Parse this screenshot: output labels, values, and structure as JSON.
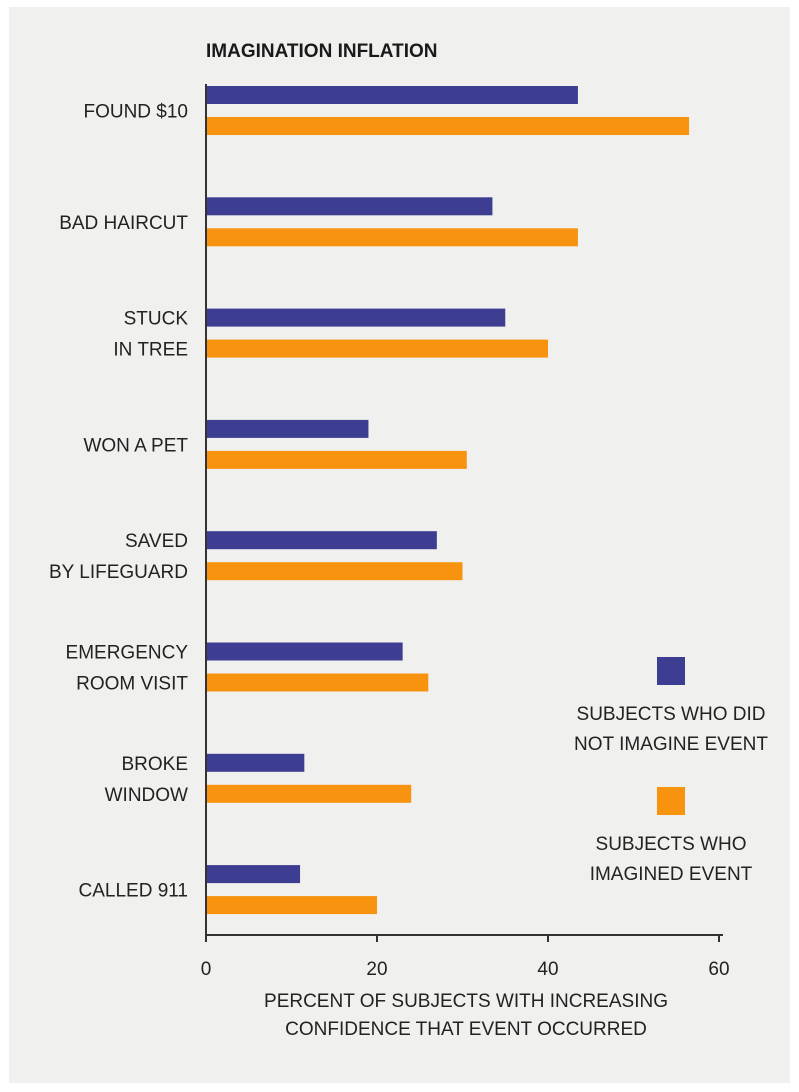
{
  "chart_data": {
    "type": "bar",
    "orientation": "horizontal",
    "title": "IMAGINATION INFLATION",
    "xlabel": [
      "PERCENT OF SUBJECTS WITH INCREASING",
      "CONFIDENCE THAT EVENT OCCURRED"
    ],
    "ylabel": "",
    "xlim": [
      0,
      60
    ],
    "xticks": [
      0,
      20,
      40,
      60
    ],
    "grid": false,
    "legend_position": "right",
    "categories": [
      [
        "FOUND $10"
      ],
      [
        "BAD HAIRCUT"
      ],
      [
        "STUCK",
        "IN TREE"
      ],
      [
        "WON A PET"
      ],
      [
        "SAVED",
        "BY LIFEGUARD"
      ],
      [
        "EMERGENCY",
        "ROOM VISIT"
      ],
      [
        "BROKE",
        "WINDOW"
      ],
      [
        "CALLED 911"
      ]
    ],
    "series": [
      {
        "name": [
          "SUBJECTS WHO DID",
          "NOT IMAGINE EVENT"
        ],
        "color": "#3d3d92",
        "values": [
          43.5,
          33.5,
          35,
          19,
          27,
          23,
          11.5,
          11
        ]
      },
      {
        "name": [
          "SUBJECTS WHO",
          "IMAGINED EVENT"
        ],
        "color": "#f7930f",
        "values": [
          56.5,
          43.5,
          40,
          30.5,
          30,
          26,
          24,
          20
        ]
      }
    ]
  }
}
